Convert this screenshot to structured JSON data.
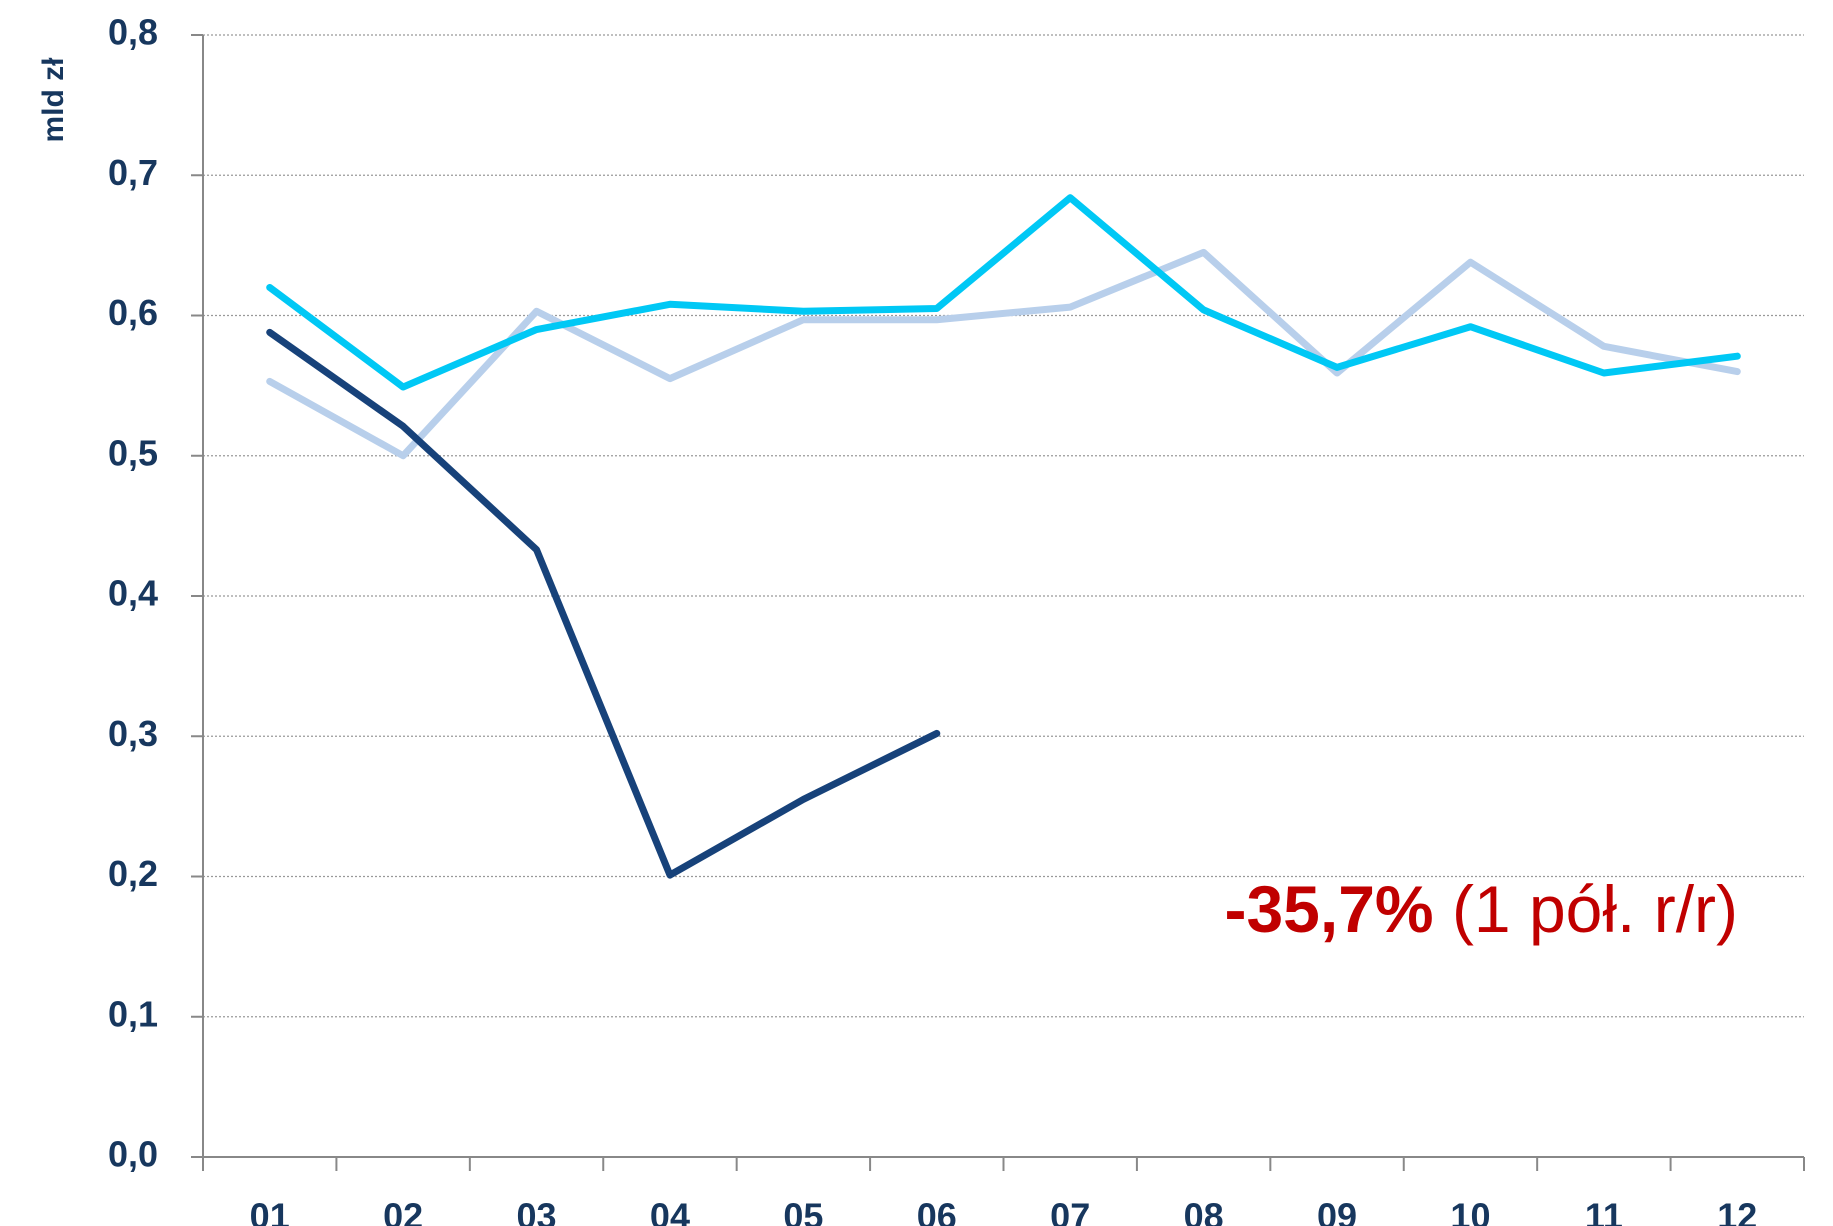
{
  "chart_data": {
    "type": "line",
    "y_label": "mld zł",
    "annotation": {
      "bold": "-35,7%",
      "rest": " (1 pół. r/r)",
      "color": "#c00000"
    },
    "categories": [
      "01",
      "02",
      "03",
      "04",
      "05",
      "06",
      "07",
      "08",
      "09",
      "10",
      "11",
      "12"
    ],
    "series": [
      {
        "color": "#b8cfeb",
        "values": [
          0.553,
          0.5,
          0.603,
          0.555,
          0.597,
          0.597,
          0.606,
          0.645,
          0.559,
          0.638,
          0.578,
          0.56
        ]
      },
      {
        "color": "#00c8f5",
        "values": [
          0.62,
          0.549,
          0.59,
          0.608,
          0.603,
          0.605,
          0.684,
          0.604,
          0.563,
          0.592,
          0.559,
          0.571
        ]
      },
      {
        "color": "#17427a",
        "values": [
          0.588,
          0.521,
          0.433,
          0.201,
          0.255,
          0.302,
          null,
          null,
          null,
          null,
          null,
          null
        ]
      }
    ],
    "ylim": [
      0,
      0.8
    ],
    "yticks": [
      {
        "value": 0,
        "label": "0,0"
      },
      {
        "value": 0.1,
        "label": "0,1"
      },
      {
        "value": 0.2,
        "label": "0,2"
      },
      {
        "value": 0.3,
        "label": "0,3"
      },
      {
        "value": 0.4,
        "label": "0,4"
      },
      {
        "value": 0.5,
        "label": "0,5"
      },
      {
        "value": 0.6,
        "label": "0,6"
      },
      {
        "value": 0.7,
        "label": "0,7"
      },
      {
        "value": 0.8,
        "label": "0,8"
      }
    ],
    "grid": true
  }
}
